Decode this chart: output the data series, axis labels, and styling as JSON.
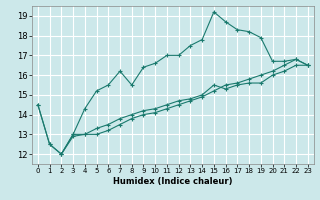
{
  "title": "",
  "xlabel": "Humidex (Indice chaleur)",
  "ylabel": "",
  "bg_color": "#cce8ea",
  "grid_color": "#ffffff",
  "line_color": "#1a7a6e",
  "marker": "+",
  "xlim": [
    -0.5,
    23.5
  ],
  "ylim": [
    11.5,
    19.5
  ],
  "xticks": [
    0,
    1,
    2,
    3,
    4,
    5,
    6,
    7,
    8,
    9,
    10,
    11,
    12,
    13,
    14,
    15,
    16,
    17,
    18,
    19,
    20,
    21,
    22,
    23
  ],
  "yticks": [
    12,
    13,
    14,
    15,
    16,
    17,
    18,
    19
  ],
  "line1_x": [
    0,
    1,
    2,
    3,
    4,
    5,
    6,
    7,
    8,
    9,
    10,
    11,
    12,
    13,
    14,
    15,
    16,
    17,
    18,
    19,
    20,
    21,
    22,
    23
  ],
  "line1_y": [
    14.5,
    12.5,
    12.0,
    13.0,
    14.3,
    15.2,
    15.5,
    16.2,
    15.5,
    16.4,
    16.6,
    17.0,
    17.0,
    17.5,
    17.8,
    19.2,
    18.7,
    18.3,
    18.2,
    17.9,
    16.7,
    16.7,
    16.8,
    16.5
  ],
  "line2_x": [
    0,
    1,
    2,
    3,
    4,
    5,
    6,
    7,
    8,
    9,
    10,
    11,
    12,
    13,
    14,
    15,
    16,
    17,
    18,
    19,
    20,
    21,
    22,
    23
  ],
  "line2_y": [
    14.5,
    12.5,
    12.0,
    13.0,
    13.0,
    13.3,
    13.5,
    13.8,
    14.0,
    14.2,
    14.3,
    14.5,
    14.7,
    14.8,
    15.0,
    15.5,
    15.3,
    15.5,
    15.6,
    15.6,
    16.0,
    16.2,
    16.5,
    16.5
  ],
  "line3_x": [
    2,
    3,
    4,
    5,
    6,
    7,
    8,
    9,
    10,
    11,
    12,
    13,
    14,
    15,
    16,
    17,
    18,
    19,
    20,
    21,
    22,
    23
  ],
  "line3_y": [
    12.0,
    12.9,
    13.0,
    13.0,
    13.2,
    13.5,
    13.8,
    14.0,
    14.1,
    14.3,
    14.5,
    14.7,
    14.9,
    15.2,
    15.5,
    15.6,
    15.8,
    16.0,
    16.2,
    16.5,
    16.8,
    16.5
  ]
}
